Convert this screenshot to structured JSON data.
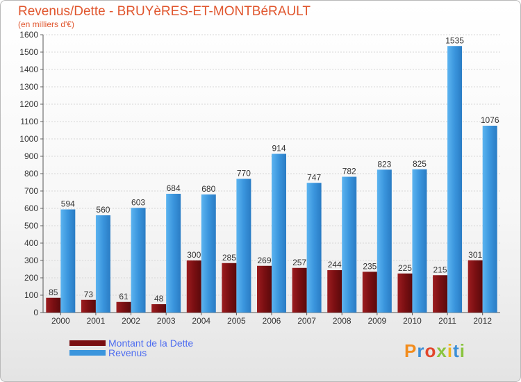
{
  "chart_data": {
    "type": "bar",
    "title": "Revenus/Dette - BRUYèRES-ET-MONTBéRAULT",
    "subtitle": "(en milliers d'€)",
    "categories": [
      "2000",
      "2001",
      "2002",
      "2003",
      "2004",
      "2005",
      "2006",
      "2007",
      "2008",
      "2009",
      "2010",
      "2011",
      "2012"
    ],
    "series": [
      {
        "name": "Montant de la Dette",
        "color": "#7a0f12",
        "values": [
          85,
          73,
          61,
          48,
          300,
          285,
          269,
          257,
          244,
          235,
          225,
          215,
          301
        ]
      },
      {
        "name": "Revenus",
        "color": "#3a95dd",
        "values": [
          594,
          560,
          603,
          684,
          680,
          770,
          914,
          747,
          782,
          823,
          825,
          1535,
          1076
        ]
      }
    ],
    "ylim": [
      0,
      1600
    ],
    "ytick_step": 100,
    "grid": true,
    "legend_position": "bottom-left",
    "brand": "Proxiti"
  }
}
